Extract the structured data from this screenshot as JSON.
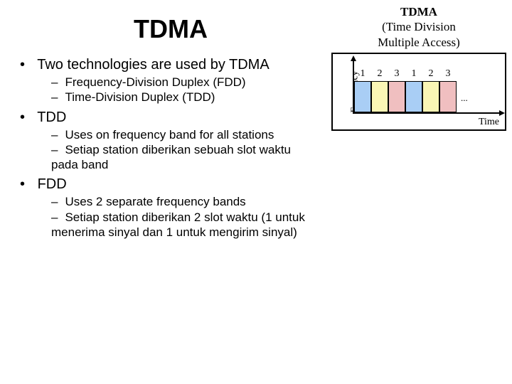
{
  "title": "TDMA",
  "bullets": {
    "b1": {
      "text": "Two technologies are used by TDMA",
      "sub": {
        "s1": "Frequency-Division Duplex (FDD)",
        "s2": "Time-Division Duplex (TDD)"
      }
    },
    "b2": {
      "text": "TDD",
      "sub": {
        "s1": "Uses on frequency band for all stations",
        "s2": "Setiap station diberikan sebuah slot waktu pada band"
      }
    },
    "b3": {
      "text": "FDD",
      "sub": {
        "s1": "Uses 2 separate frequency bands",
        "s2": "Setiap station diberikan 2 slot waktu (1 untuk menerima sinyal dan 1 untuk mengirim sinyal)"
      }
    }
  },
  "figure": {
    "caption_line1": "TDMA",
    "caption_line2": "(Time Division",
    "caption_line3": "Multiple Access)",
    "y_axis": "Frequency",
    "x_axis": "Time",
    "ellipsis": "...",
    "slots": [
      {
        "label": "1",
        "color": "#a9cef5"
      },
      {
        "label": "2",
        "color": "#faf6b5"
      },
      {
        "label": "3",
        "color": "#f0bfc0"
      },
      {
        "label": "1",
        "color": "#a9cef5"
      },
      {
        "label": "2",
        "color": "#faf6b5"
      },
      {
        "label": "3",
        "color": "#f0bfc0"
      }
    ]
  }
}
